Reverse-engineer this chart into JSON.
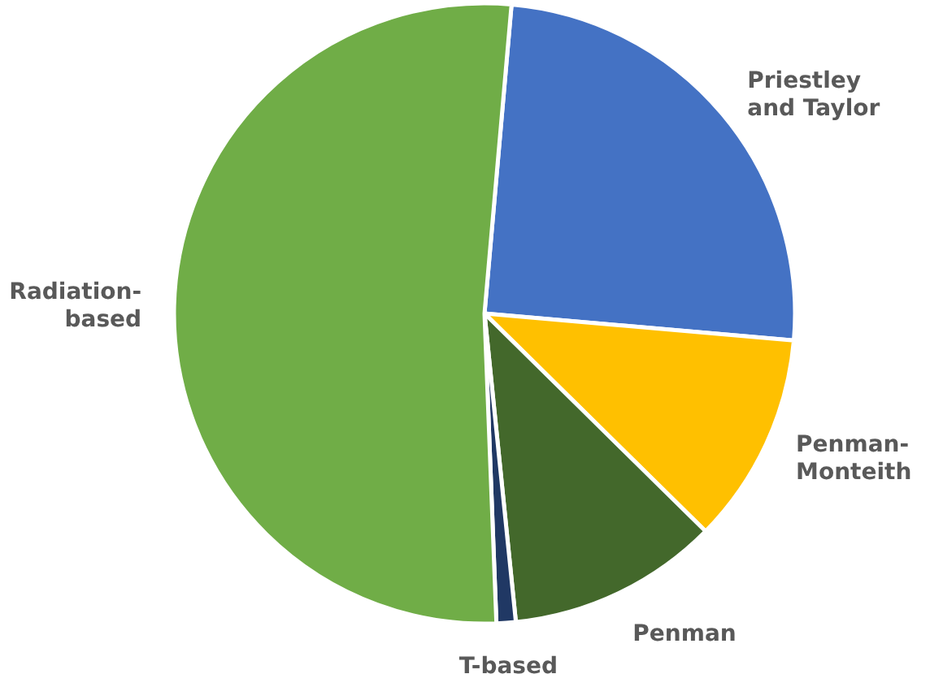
{
  "chart_data": {
    "type": "pie",
    "categories": [
      "Priestley and Taylor",
      "Penman-Monteith",
      "Penman",
      "T-based",
      "Radiation-based"
    ],
    "values": [
      25,
      11,
      11,
      1,
      52
    ],
    "colors": [
      "#4472c4",
      "#ffc000",
      "#43682b",
      "#203864",
      "#70ad47"
    ]
  }
}
